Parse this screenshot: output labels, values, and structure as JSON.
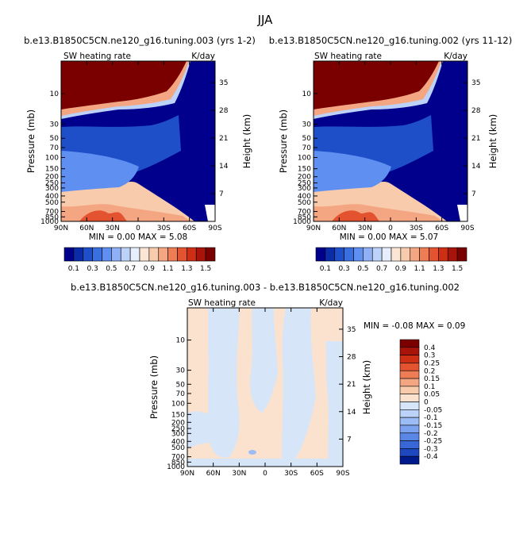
{
  "figure": {
    "title": "JJA"
  },
  "chart_data": [
    {
      "type": "heatmap",
      "title": "b.e13.B1850C5CN.ne120_g16.tuning.003 (yrs 1-2)",
      "left_label": "SW heating rate",
      "right_label": "K/day",
      "ylabel": "Pressure (mb)",
      "ylabel_right": "Height (km)",
      "stats_text": "MIN =    0.00   MAX =    5.08",
      "x_ticks": [
        "90N",
        "60N",
        "30N",
        "0",
        "30S",
        "60S",
        "90S"
      ],
      "y_ticks": [
        "10",
        "30",
        "50",
        "70",
        "100",
        "150",
        "200",
        "250",
        "300",
        "400",
        "500",
        "700",
        "850",
        "1000"
      ],
      "y_ticks_right": [
        "35",
        "28",
        "21",
        "14",
        "7"
      ],
      "colorbar_levels": [
        "0.1",
        "0.3",
        "0.5",
        "0.7",
        "0.9",
        "1.1",
        "1.3",
        "1.5"
      ]
    },
    {
      "type": "heatmap",
      "title": "b.e13.B1850C5CN.ne120_g16.tuning.002 (yrs 11-12)",
      "left_label": "SW heating rate",
      "right_label": "K/day",
      "ylabel": "Pressure (mb)",
      "ylabel_right": "Height (km)",
      "stats_text": "MIN =    0.00   MAX =    5.07",
      "x_ticks": [
        "90N",
        "60N",
        "30N",
        "0",
        "30S",
        "60S",
        "90S"
      ],
      "y_ticks": [
        "10",
        "30",
        "50",
        "70",
        "100",
        "150",
        "200",
        "250",
        "300",
        "400",
        "500",
        "700",
        "850",
        "1000"
      ],
      "y_ticks_right": [
        "35",
        "28",
        "21",
        "14",
        "7"
      ],
      "colorbar_levels": [
        "0.1",
        "0.3",
        "0.5",
        "0.7",
        "0.9",
        "1.1",
        "1.3",
        "1.5"
      ]
    },
    {
      "type": "heatmap",
      "title": "b.e13.B1850C5CN.ne120_g16.tuning.003 - b.e13.B1850C5CN.ne120_g16.tuning.002",
      "left_label": "SW heating rate",
      "right_label": "K/day",
      "ylabel": "Pressure (mb)",
      "ylabel_right": "Height (km)",
      "stats_text": "MIN =   -0.08   MAX =    0.09",
      "x_ticks": [
        "90N",
        "60N",
        "30N",
        "0",
        "30S",
        "60S",
        "90S"
      ],
      "y_ticks": [
        "10",
        "30",
        "50",
        "70",
        "100",
        "150",
        "200",
        "250",
        "300",
        "400",
        "500",
        "700",
        "850",
        "1000"
      ],
      "y_ticks_right": [
        "35",
        "28",
        "21",
        "14",
        "7"
      ],
      "colorbar_levels": [
        "0.4",
        "0.3",
        "0.25",
        "0.2",
        "0.15",
        "0.1",
        "0.05",
        "0",
        "-0.05",
        "-0.1",
        "-0.15",
        "-0.2",
        "-0.25",
        "-0.3",
        "-0.4"
      ]
    }
  ],
  "colors": {
    "abs_scale": [
      "#00008c",
      "#0a2ca8",
      "#1e4fc8",
      "#3a6fe0",
      "#5f8ff0",
      "#8fb0f5",
      "#bcd2f8",
      "#e6eefb",
      "#fbe6d6",
      "#f8cbad",
      "#f4a582",
      "#ee7d55",
      "#e3532f",
      "#cc2f14",
      "#a8140a",
      "#7a0000"
    ],
    "diff_scale": [
      "#7a0000",
      "#a8140a",
      "#cc2f14",
      "#e3532f",
      "#ee7d55",
      "#f4a582",
      "#f8cbad",
      "#fbe2cf",
      "#d6e6f8",
      "#bcd2f8",
      "#9cbcf5",
      "#7ba2ee",
      "#5a86e6",
      "#3a67d8",
      "#1e48c0",
      "#001a8c"
    ]
  }
}
